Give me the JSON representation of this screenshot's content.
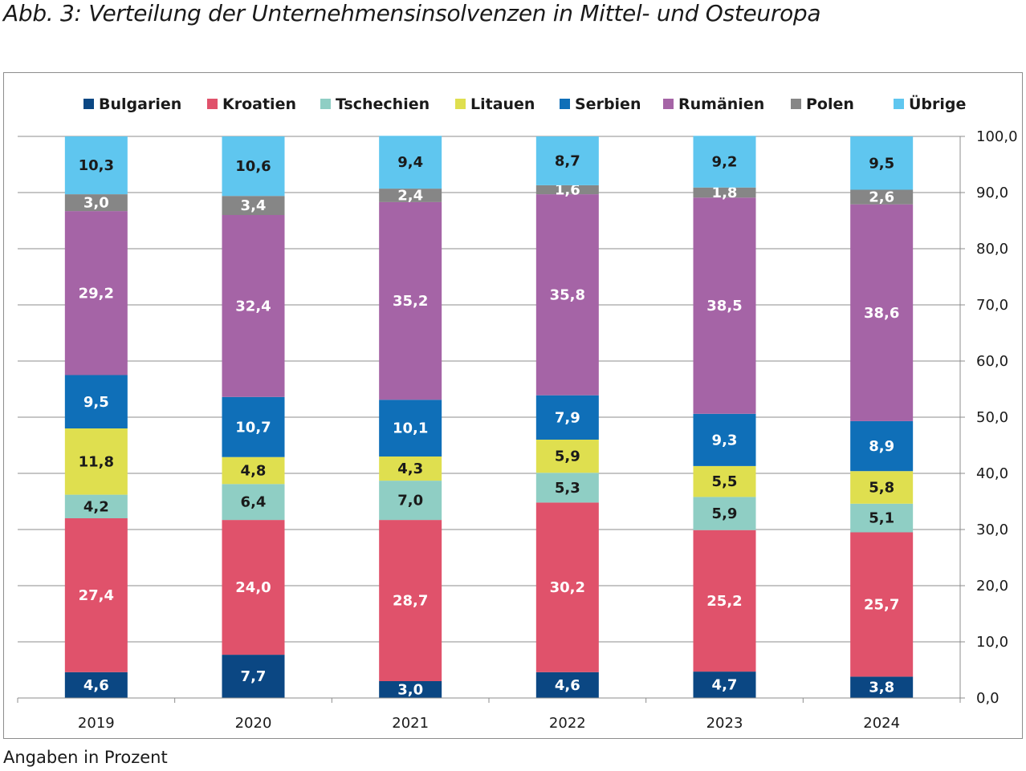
{
  "title": "Abb. 3:  Verteilung der Unternehmensinsolvenzen in Mittel- und Osteuropa",
  "footnote": "Angaben in Prozent",
  "chart_data": {
    "type": "bar",
    "stacked": true,
    "categories": [
      "2019",
      "2020",
      "2021",
      "2022",
      "2023",
      "2024"
    ],
    "ylim": [
      0,
      100
    ],
    "yticks": [
      "0,0",
      "10,0",
      "20,0",
      "30,0",
      "40,0",
      "50,0",
      "60,0",
      "70,0",
      "80,0",
      "90,0",
      "100,0"
    ],
    "y_axis_side": "right",
    "grid": true,
    "legend_position": "top",
    "series": [
      {
        "name": "Bulgarien",
        "color": "#0b4783",
        "label_color": "#ffffff",
        "values": [
          4.6,
          7.7,
          3.0,
          4.6,
          4.7,
          3.8
        ],
        "labels": [
          "4,6",
          "7,7",
          "3,0",
          "4,6",
          "4,7",
          "3,8"
        ]
      },
      {
        "name": "Kroatien",
        "color": "#e0526b",
        "label_color": "#ffffff",
        "values": [
          27.4,
          24.0,
          28.7,
          30.2,
          25.2,
          25.7
        ],
        "labels": [
          "27,4",
          "24,0",
          "28,7",
          "30,2",
          "25,2",
          "25,7"
        ]
      },
      {
        "name": "Tschechien",
        "color": "#8fcec4",
        "label_color": "#1a1a1a",
        "values": [
          4.2,
          6.4,
          7.0,
          5.3,
          5.9,
          5.1
        ],
        "labels": [
          "4,2",
          "6,4",
          "7,0",
          "5,3",
          "5,9",
          "5,1"
        ]
      },
      {
        "name": "Litauen",
        "color": "#dfdf4f",
        "label_color": "#1a1a1a",
        "values": [
          11.8,
          4.8,
          4.3,
          5.9,
          5.5,
          5.8
        ],
        "labels": [
          "11,8",
          "4,8",
          "4,3",
          "5,9",
          "5,5",
          "5,8"
        ]
      },
      {
        "name": "Serbien",
        "color": "#0f6fb8",
        "label_color": "#ffffff",
        "values": [
          9.5,
          10.7,
          10.1,
          7.9,
          9.3,
          8.9
        ],
        "labels": [
          "9,5",
          "10,7",
          "10,1",
          "7,9",
          "9,3",
          "8,9"
        ]
      },
      {
        "name": "Rumänien",
        "color": "#a564a6",
        "label_color": "#ffffff",
        "values": [
          29.2,
          32.4,
          35.2,
          35.8,
          38.5,
          38.6
        ],
        "labels": [
          "29,2",
          "32,4",
          "35,2",
          "35,8",
          "38,5",
          "38,6"
        ]
      },
      {
        "name": "Polen",
        "color": "#868686",
        "label_color": "#ffffff",
        "values": [
          3.0,
          3.4,
          2.4,
          1.6,
          1.8,
          2.6
        ],
        "labels": [
          "3,0",
          "3,4",
          "2,4",
          "1,6",
          "1,8",
          "2,6"
        ]
      },
      {
        "name": "Übrige",
        "color": "#5fc6ef",
        "label_color": "#1a1a1a",
        "values": [
          10.3,
          10.6,
          9.4,
          8.7,
          9.2,
          9.5
        ],
        "labels": [
          "10,3",
          "10,6",
          "9,4",
          "8,7",
          "9,2",
          "9,5"
        ]
      }
    ]
  }
}
